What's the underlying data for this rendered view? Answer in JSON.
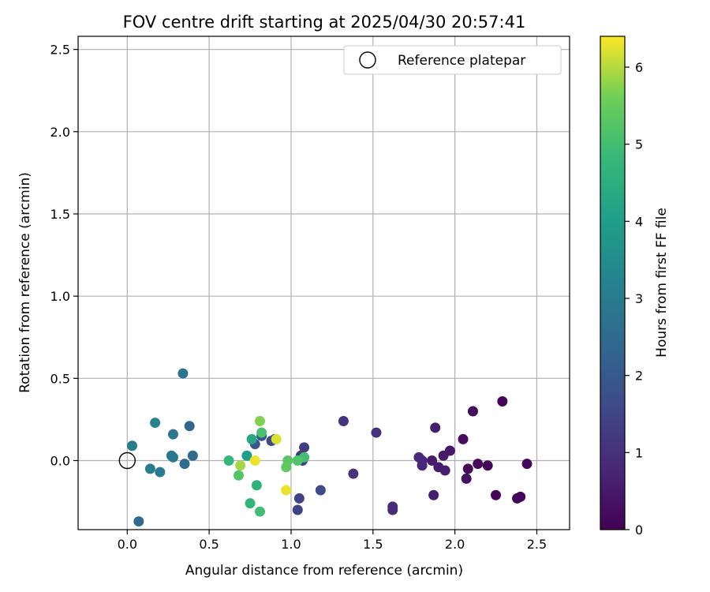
{
  "chart_data": {
    "type": "scatter",
    "title": "FOV centre drift starting at 2025/04/30 20:57:41",
    "xlabel": "Angular distance from reference (arcmin)",
    "ylabel": "Rotation from reference (arcmin)",
    "xlim": [
      -0.3,
      2.7
    ],
    "ylim": [
      -0.42,
      2.58
    ],
    "xticks": [
      0.0,
      0.5,
      1.0,
      1.5,
      2.0,
      2.5
    ],
    "xtick_labels": [
      "0.0",
      "0.5",
      "1.0",
      "1.5",
      "2.0",
      "2.5"
    ],
    "yticks": [
      0.0,
      0.5,
      1.0,
      1.5,
      2.0,
      2.5
    ],
    "ytick_labels": [
      "0.0",
      "0.5",
      "1.0",
      "1.5",
      "2.0",
      "2.5"
    ],
    "grid": true,
    "legend": {
      "position": "top-right",
      "entries": [
        "Reference platepar"
      ]
    },
    "reference_point": {
      "x": 0.0,
      "y": 0.0,
      "label": "Reference platepar"
    },
    "colorbar": {
      "label": "Hours from first FF file",
      "colormap": "viridis",
      "range": [
        0,
        6.4
      ],
      "ticks": [
        0,
        1,
        2,
        3,
        4,
        5,
        6
      ],
      "tick_labels": [
        "0",
        "1",
        "2",
        "3",
        "4",
        "5",
        "6"
      ]
    },
    "points": [
      {
        "x": 2.29,
        "y": 0.36,
        "h": 0.1
      },
      {
        "x": 2.11,
        "y": 0.3,
        "h": 0.2
      },
      {
        "x": 2.05,
        "y": 0.13,
        "h": 0.2
      },
      {
        "x": 2.44,
        "y": -0.02,
        "h": 0.1
      },
      {
        "x": 2.14,
        "y": -0.02,
        "h": 0.15
      },
      {
        "x": 2.2,
        "y": -0.03,
        "h": 0.1
      },
      {
        "x": 2.08,
        "y": -0.05,
        "h": 0.15
      },
      {
        "x": 2.07,
        "y": -0.11,
        "h": 0.3
      },
      {
        "x": 2.25,
        "y": -0.21,
        "h": 0.1
      },
      {
        "x": 2.38,
        "y": -0.23,
        "h": 0.05
      },
      {
        "x": 2.4,
        "y": -0.22,
        "h": 0.1
      },
      {
        "x": 1.97,
        "y": 0.06,
        "h": 0.45
      },
      {
        "x": 1.93,
        "y": 0.03,
        "h": 0.5
      },
      {
        "x": 1.86,
        "y": 0.0,
        "h": 0.55
      },
      {
        "x": 1.9,
        "y": -0.04,
        "h": 0.55
      },
      {
        "x": 1.94,
        "y": -0.06,
        "h": 0.6
      },
      {
        "x": 1.88,
        "y": 0.2,
        "h": 0.6
      },
      {
        "x": 1.87,
        "y": -0.21,
        "h": 0.65
      },
      {
        "x": 1.78,
        "y": 0.02,
        "h": 0.8
      },
      {
        "x": 1.8,
        "y": 0.0,
        "h": 0.8
      },
      {
        "x": 1.8,
        "y": -0.03,
        "h": 0.8
      },
      {
        "x": 1.62,
        "y": -0.28,
        "h": 0.9
      },
      {
        "x": 1.62,
        "y": -0.3,
        "h": 0.9
      },
      {
        "x": 1.52,
        "y": 0.17,
        "h": 1.0
      },
      {
        "x": 1.32,
        "y": 0.24,
        "h": 1.1
      },
      {
        "x": 1.38,
        "y": -0.08,
        "h": 1.05
      },
      {
        "x": 1.08,
        "y": 0.08,
        "h": 1.3
      },
      {
        "x": 1.06,
        "y": 0.03,
        "h": 1.3
      },
      {
        "x": 1.07,
        "y": 0.0,
        "h": 1.35
      },
      {
        "x": 1.05,
        "y": -0.23,
        "h": 1.4
      },
      {
        "x": 1.04,
        "y": -0.3,
        "h": 1.4
      },
      {
        "x": 1.18,
        "y": -0.18,
        "h": 1.6
      },
      {
        "x": 0.9,
        "y": 0.13,
        "h": 1.55
      },
      {
        "x": 0.88,
        "y": 0.12,
        "h": 1.6
      },
      {
        "x": 0.82,
        "y": 0.15,
        "h": 1.8
      },
      {
        "x": 0.78,
        "y": 0.1,
        "h": 1.9
      },
      {
        "x": 0.38,
        "y": 0.21,
        "h": 2.4
      },
      {
        "x": 0.4,
        "y": 0.03,
        "h": 2.5
      },
      {
        "x": 0.35,
        "y": -0.02,
        "h": 2.5
      },
      {
        "x": 0.07,
        "y": -0.37,
        "h": 2.5
      },
      {
        "x": 0.34,
        "y": 0.53,
        "h": 2.8
      },
      {
        "x": 0.28,
        "y": 0.16,
        "h": 2.8
      },
      {
        "x": 0.27,
        "y": 0.03,
        "h": 2.9
      },
      {
        "x": 0.28,
        "y": 0.02,
        "h": 2.9
      },
      {
        "x": 0.2,
        "y": -0.07,
        "h": 2.95
      },
      {
        "x": 0.14,
        "y": -0.05,
        "h": 3.0
      },
      {
        "x": 0.03,
        "y": 0.09,
        "h": 3.0
      },
      {
        "x": 0.17,
        "y": 0.23,
        "h": 3.2
      },
      {
        "x": 0.73,
        "y": 0.03,
        "h": 4.0
      },
      {
        "x": 0.76,
        "y": 0.13,
        "h": 4.3
      },
      {
        "x": 0.79,
        "y": -0.15,
        "h": 4.6
      },
      {
        "x": 0.75,
        "y": -0.26,
        "h": 4.7
      },
      {
        "x": 0.62,
        "y": 0.0,
        "h": 4.8
      },
      {
        "x": 0.82,
        "y": 0.17,
        "h": 5.1
      },
      {
        "x": 0.81,
        "y": -0.31,
        "h": 5.0
      },
      {
        "x": 0.68,
        "y": -0.09,
        "h": 5.2
      },
      {
        "x": 1.08,
        "y": 0.02,
        "h": 5.0
      },
      {
        "x": 1.04,
        "y": 0.0,
        "h": 5.2
      },
      {
        "x": 0.98,
        "y": 0.0,
        "h": 5.3
      },
      {
        "x": 0.97,
        "y": -0.04,
        "h": 5.4
      },
      {
        "x": 0.81,
        "y": 0.24,
        "h": 5.7
      },
      {
        "x": 0.69,
        "y": -0.03,
        "h": 5.9
      },
      {
        "x": 0.78,
        "y": 0.0,
        "h": 6.3
      },
      {
        "x": 0.91,
        "y": 0.13,
        "h": 6.2
      },
      {
        "x": 0.97,
        "y": -0.18,
        "h": 6.3
      }
    ]
  }
}
